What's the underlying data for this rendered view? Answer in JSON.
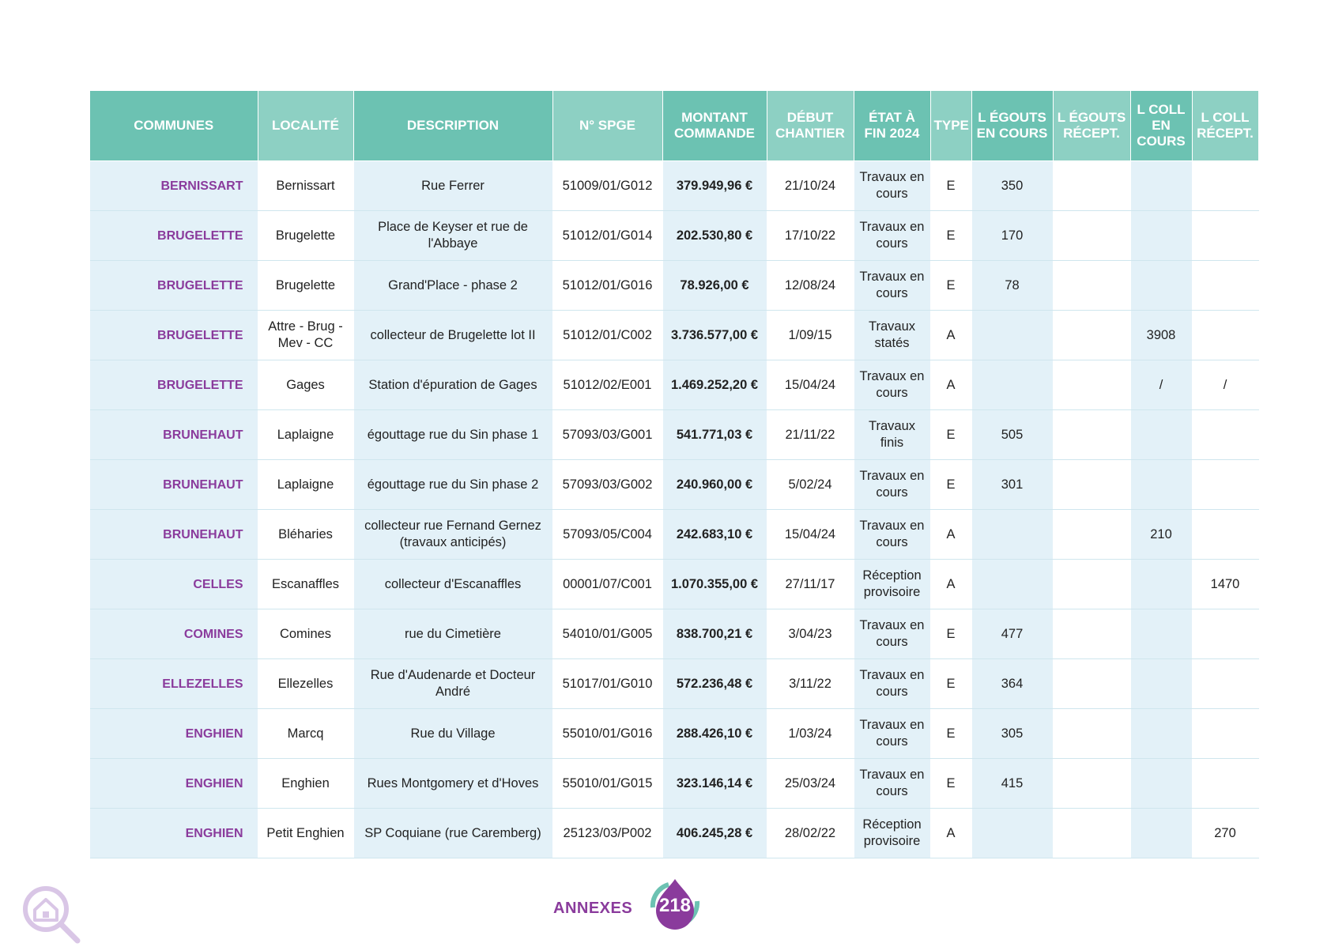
{
  "table": {
    "headers": [
      {
        "label": "COMMUNES"
      },
      {
        "label": "LOCALITÉ"
      },
      {
        "label": "DESCRIPTION"
      },
      {
        "label": "N° SPGE"
      },
      {
        "label": "MONTANT COMMANDE"
      },
      {
        "label": "DÉBUT CHANTIER"
      },
      {
        "label": "ÉTAT À FIN 2024"
      },
      {
        "label": "TYPE"
      },
      {
        "label": "L ÉGOUTS EN COURS"
      },
      {
        "label": "L ÉGOUTS RÉCEPT."
      },
      {
        "label": "L COLL EN COURS"
      },
      {
        "label": "L COLL RÉCEPT."
      }
    ],
    "rows": [
      {
        "commune": "BERNISSART",
        "localite": "Bernissart",
        "description": "Rue Ferrer",
        "spge": "51009/01/G012",
        "montant": "379.949,96 €",
        "debut": "21/10/24",
        "etat": "Travaux en cours",
        "type": "E",
        "eg_cours": "350",
        "eg_recept": "",
        "coll_cours": "",
        "coll_recept": ""
      },
      {
        "commune": "BRUGELETTE",
        "localite": "Brugelette",
        "description": "Place de Keyser et rue de l'Abbaye",
        "spge": "51012/01/G014",
        "montant": "202.530,80 €",
        "debut": "17/10/22",
        "etat": "Travaux en cours",
        "type": "E",
        "eg_cours": "170",
        "eg_recept": "",
        "coll_cours": "",
        "coll_recept": ""
      },
      {
        "commune": "BRUGELETTE",
        "localite": "Brugelette",
        "description": "Grand'Place - phase 2",
        "spge": "51012/01/G016",
        "montant": "78.926,00 €",
        "debut": "12/08/24",
        "etat": "Travaux en cours",
        "type": "E",
        "eg_cours": "78",
        "eg_recept": "",
        "coll_cours": "",
        "coll_recept": ""
      },
      {
        "commune": "BRUGELETTE",
        "localite": "Attre - Brug - Mev - CC",
        "description": "collecteur de Brugelette lot II",
        "spge": "51012/01/C002",
        "montant": "3.736.577,00 €",
        "debut": "1/09/15",
        "etat": "Travaux statés",
        "type": "A",
        "eg_cours": "",
        "eg_recept": "",
        "coll_cours": "3908",
        "coll_recept": ""
      },
      {
        "commune": "BRUGELETTE",
        "localite": "Gages",
        "description": "Station d'épuration de Gages",
        "spge": "51012/02/E001",
        "montant": "1.469.252,20 €",
        "debut": "15/04/24",
        "etat": "Travaux en cours",
        "type": "A",
        "eg_cours": "",
        "eg_recept": "",
        "coll_cours": "/",
        "coll_recept": "/"
      },
      {
        "commune": "BRUNEHAUT",
        "localite": "Laplaigne",
        "description": "égouttage rue du Sin phase 1",
        "spge": "57093/03/G001",
        "montant": "541.771,03 €",
        "debut": "21/11/22",
        "etat": "Travaux finis",
        "type": "E",
        "eg_cours": "505",
        "eg_recept": "",
        "coll_cours": "",
        "coll_recept": ""
      },
      {
        "commune": "BRUNEHAUT",
        "localite": "Laplaigne",
        "description": "égouttage rue du Sin phase 2",
        "spge": "57093/03/G002",
        "montant": "240.960,00 €",
        "debut": "5/02/24",
        "etat": "Travaux en cours",
        "type": "E",
        "eg_cours": "301",
        "eg_recept": "",
        "coll_cours": "",
        "coll_recept": ""
      },
      {
        "commune": "BRUNEHAUT",
        "localite": "Bléharies",
        "description": "collecteur rue Fernand Gernez (travaux anticipés)",
        "spge": "57093/05/C004",
        "montant": "242.683,10 €",
        "debut": "15/04/24",
        "etat": "Travaux en cours",
        "type": "A",
        "eg_cours": "",
        "eg_recept": "",
        "coll_cours": "210",
        "coll_recept": ""
      },
      {
        "commune": "CELLES",
        "localite": "Escanaffles",
        "description": "collecteur d'Escanaffles",
        "spge": "00001/07/C001",
        "montant": "1.070.355,00 €",
        "debut": "27/11/17",
        "etat": "Réception provisoire",
        "type": "A",
        "eg_cours": "",
        "eg_recept": "",
        "coll_cours": "",
        "coll_recept": "1470"
      },
      {
        "commune": "COMINES",
        "localite": "Comines",
        "description": "rue du Cimetière",
        "spge": "54010/01/G005",
        "montant": "838.700,21 €",
        "debut": "3/04/23",
        "etat": "Travaux en cours",
        "type": "E",
        "eg_cours": "477",
        "eg_recept": "",
        "coll_cours": "",
        "coll_recept": ""
      },
      {
        "commune": "ELLEZELLES",
        "localite": "Ellezelles",
        "description": "Rue d'Audenarde et Docteur André",
        "spge": "51017/01/G010",
        "montant": "572.236,48 €",
        "debut": "3/11/22",
        "etat": "Travaux en cours",
        "type": "E",
        "eg_cours": "364",
        "eg_recept": "",
        "coll_cours": "",
        "coll_recept": ""
      },
      {
        "commune": "ENGHIEN",
        "localite": "Marcq",
        "description": "Rue du Village",
        "spge": "55010/01/G016",
        "montant": "288.426,10 €",
        "debut": "1/03/24",
        "etat": "Travaux en cours",
        "type": "E",
        "eg_cours": "305",
        "eg_recept": "",
        "coll_cours": "",
        "coll_recept": ""
      },
      {
        "commune": "ENGHIEN",
        "localite": "Enghien",
        "description": "Rues Montgomery et d'Hoves",
        "spge": "55010/01/G015",
        "montant": "323.146,14 €",
        "debut": "25/03/24",
        "etat": "Travaux en cours",
        "type": "E",
        "eg_cours": "415",
        "eg_recept": "",
        "coll_cours": "",
        "coll_recept": ""
      },
      {
        "commune": "ENGHIEN",
        "localite": "Petit Enghien",
        "description": "SP Coquiane (rue Caremberg)",
        "spge": "25123/03/P002",
        "montant": "406.245,28 €",
        "debut": "28/02/22",
        "etat": "Réception provisoire",
        "type": "A",
        "eg_cours": "",
        "eg_recept": "",
        "coll_cours": "",
        "coll_recept": "270"
      }
    ]
  },
  "footer": {
    "label": "ANNEXES",
    "page_number": "218",
    "colors": {
      "purple": "#8a3b9c",
      "teal": "#6cc2b2",
      "lavender": "#d9c6e6"
    },
    "icons": [
      "house-search-icon",
      "drop-badge-icon"
    ]
  }
}
